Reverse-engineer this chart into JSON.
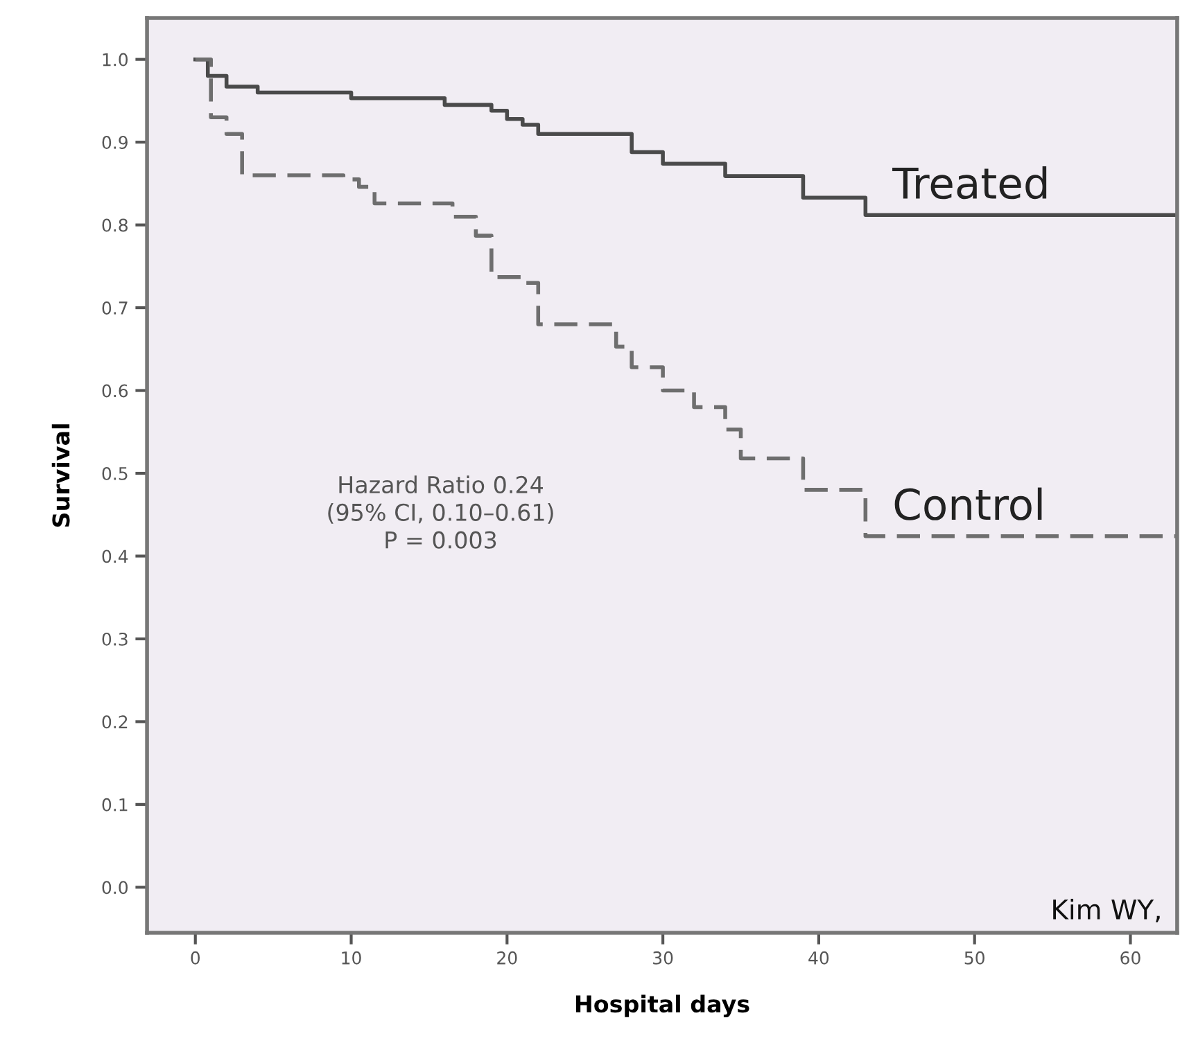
{
  "chart_data": {
    "type": "step",
    "xlabel": "Hospital days",
    "ylabel": "Survival",
    "series": [
      {
        "name": "Treated",
        "color": "#4a4a4a",
        "line_style": "solid",
        "x": [
          0,
          0.8,
          2,
          4,
          10,
          16,
          19,
          20,
          21,
          22,
          28,
          30,
          34,
          39,
          43,
          63
        ],
        "values": [
          1.0,
          0.98,
          0.967,
          0.96,
          0.953,
          0.945,
          0.938,
          0.928,
          0.921,
          0.91,
          0.888,
          0.874,
          0.859,
          0.833,
          0.812,
          0.812
        ]
      },
      {
        "name": "Control",
        "color": "#6e6e6e",
        "line_style": "dashed",
        "x": [
          0,
          1,
          2,
          3,
          9.5,
          10.5,
          11.5,
          16.5,
          18,
          19,
          21,
          22,
          27,
          28,
          30,
          32,
          34,
          35,
          39,
          43,
          63
        ],
        "values": [
          1.0,
          0.93,
          0.91,
          0.86,
          0.855,
          0.846,
          0.826,
          0.81,
          0.787,
          0.737,
          0.73,
          0.68,
          0.653,
          0.628,
          0.6,
          0.58,
          0.553,
          0.518,
          0.48,
          0.424,
          0.424
        ]
      }
    ],
    "xlim": [
      -3.1,
      63
    ],
    "xticks": [
      0,
      10,
      20,
      30,
      40,
      50,
      60
    ],
    "ylim": [
      -0.055,
      1.05
    ],
    "yticks": [
      {
        "value": 0,
        "label": "0.0"
      },
      {
        "value": 0.1,
        "label": "0.1"
      },
      {
        "value": 0.2,
        "label": "0.2"
      },
      {
        "value": 0.3,
        "label": "0.3"
      },
      {
        "value": 0.4,
        "label": "0.4"
      },
      {
        "value": 0.5,
        "label": "0.5"
      },
      {
        "value": 0.6,
        "label": "0.6"
      },
      {
        "value": 0.7,
        "label": "0.7"
      },
      {
        "value": 0.8,
        "label": "0.8"
      },
      {
        "value": 0.9,
        "label": "0.9"
      },
      {
        "value": 1.0,
        "label": "1.0"
      }
    ],
    "grid": false,
    "legend": false,
    "annotations": [
      "Hazard Ratio 0.24\n(95% CI, 0.10–0.61)\nP = 0.003",
      "Kim WY,"
    ]
  }
}
